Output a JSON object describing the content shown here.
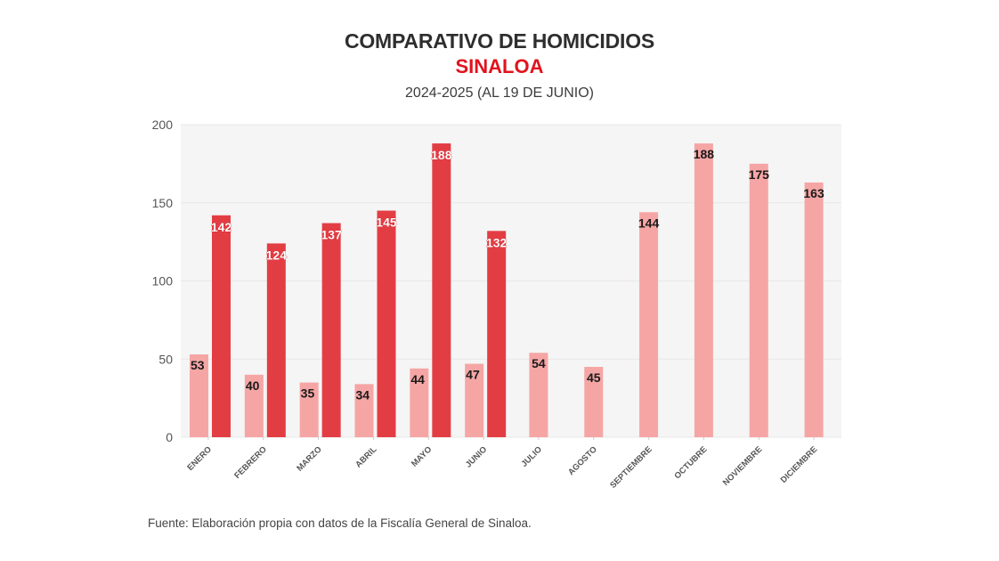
{
  "header": {
    "title": "COMPARATIVO DE HOMICIDIOS",
    "subtitle": "SINALOA",
    "period": "2024-2025 (AL 19 DE JUNIO)"
  },
  "footer": {
    "source": "Fuente: Elaboración propia con datos de la Fiscalía General de Sinaloa."
  },
  "chart_data": {
    "type": "bar",
    "title": "COMPARATIVO DE HOMICIDIOS",
    "subtitle": "SINALOA — 2024-2025 (AL 19 DE JUNIO)",
    "xlabel": "",
    "ylabel": "",
    "ylim": [
      0,
      200
    ],
    "yticks": [
      0,
      50,
      100,
      150,
      200
    ],
    "grid": true,
    "legend": "none",
    "categories": [
      "ENERO",
      "FEBRERO",
      "MARZO",
      "ABRIL",
      "MAYO",
      "JUNIO",
      "JULIO",
      "AGOSTO",
      "SEPTIEMBRE",
      "OCTUBRE",
      "NOVIEMBRE",
      "DICIEMBRE"
    ],
    "series": [
      {
        "name": "2024",
        "color": "#f6a5a5",
        "values": [
          53,
          40,
          35,
          34,
          44,
          47,
          54,
          45,
          144,
          188,
          175,
          163
        ]
      },
      {
        "name": "2025",
        "color": "#e33d44",
        "values": [
          142,
          124,
          137,
          145,
          188,
          132,
          null,
          null,
          null,
          null,
          null,
          null
        ]
      }
    ],
    "colors": {
      "plot_background": "#f5f5f5",
      "grid": "#e8e8e8"
    }
  }
}
